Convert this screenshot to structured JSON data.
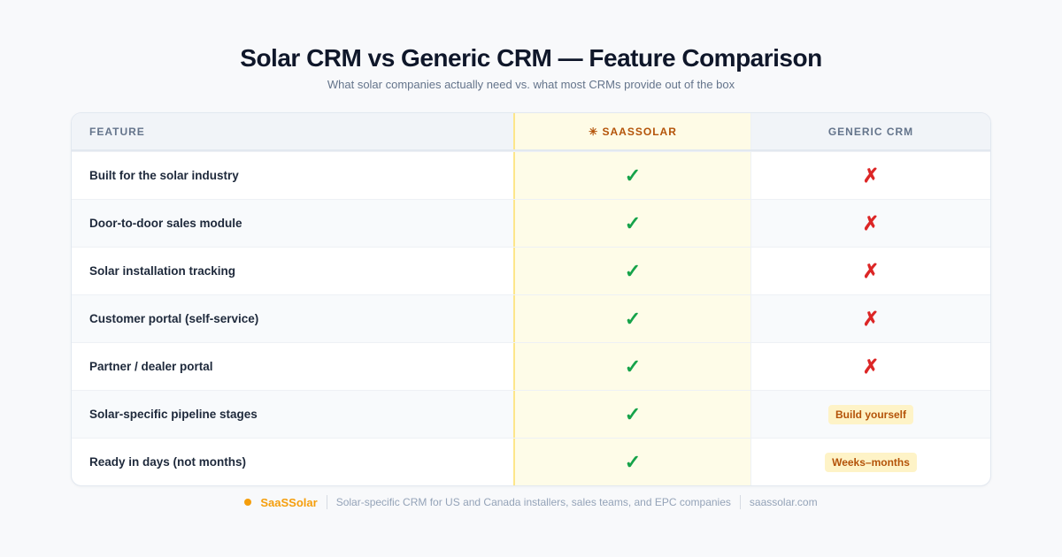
{
  "header": {
    "title": "Solar CRM vs Generic CRM — Feature Comparison",
    "subtitle": "What solar companies actually need vs. what most CRMs provide out of the box"
  },
  "table": {
    "columns": [
      "FEATURE",
      "✳ SAASSOLAR",
      "GENERIC CRM"
    ],
    "rows": [
      [
        "Built for the solar industry",
        "✓",
        "✗"
      ],
      [
        "Door-to-door sales module",
        "✓",
        "✗"
      ],
      [
        "Solar installation tracking",
        "✓",
        "✗"
      ],
      [
        "Customer portal (self-service)",
        "✓",
        "✗"
      ],
      [
        "Partner / dealer portal",
        "✓",
        "✗"
      ],
      [
        "Solar-specific pipeline stages",
        "✓",
        "Build yourself"
      ],
      [
        "Ready in days (not months)",
        "✓",
        "Weeks–months"
      ]
    ]
  },
  "footer": {
    "brand": "SaaSSolar",
    "tagline": "Solar-specific CRM for US and Canada installers, sales teams, and EPC companies",
    "url": "saassolar.com"
  }
}
